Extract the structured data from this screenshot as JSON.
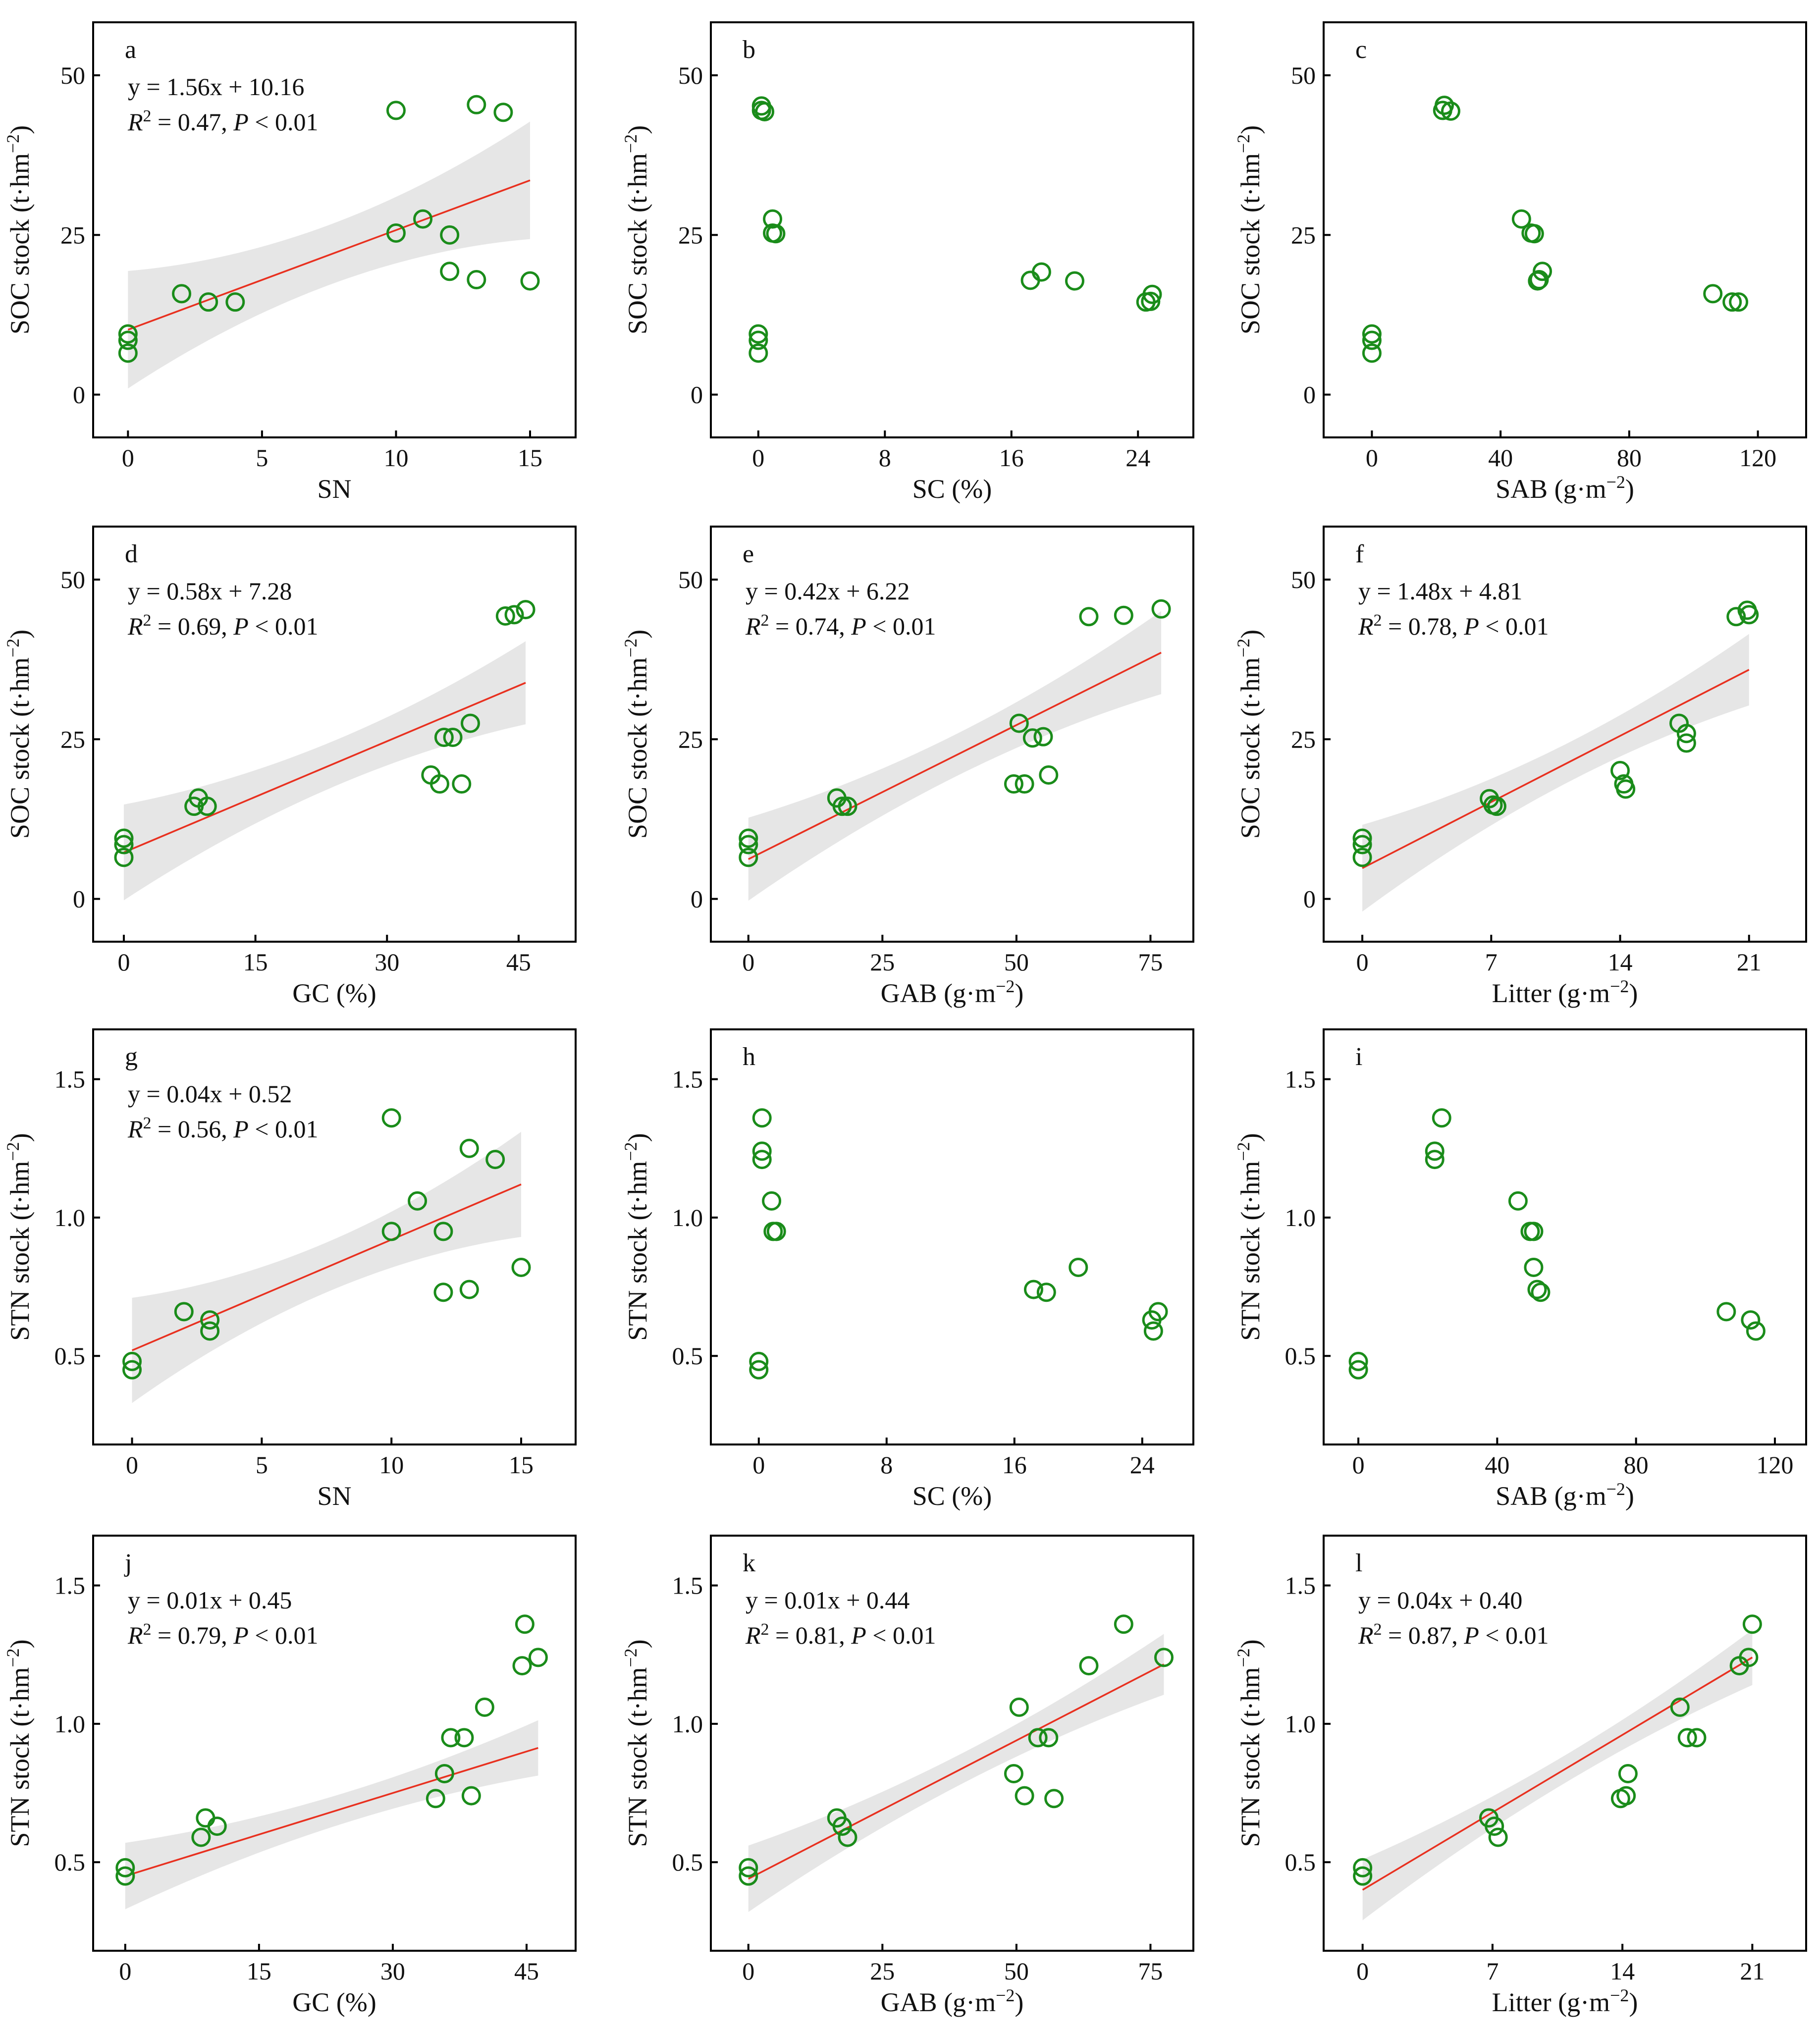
{
  "colors": {
    "point": "#1a8c1a",
    "fit_line": "#e8301f",
    "ci_band": "#e6e6e6"
  },
  "chart_data": [
    {
      "type": "scatter",
      "panel": "a",
      "xlabel": "SN",
      "ylabel": "SOC stock (t·hm⁻²)",
      "xlim": [
        -1.3,
        16.7
      ],
      "ylim": [
        -6.7,
        58.3
      ],
      "xticks": [
        0,
        5,
        10,
        15
      ],
      "yticks": [
        0,
        25,
        50
      ],
      "equation": "y = 1.56x + 10.16",
      "r2": "= 0.47, ",
      "pvalue": " < 0.01",
      "fit": {
        "slope": 1.56,
        "intercept": 10.16,
        "x_range": [
          0,
          15
        ],
        "ci_halfwidth": [
          9.2,
          4.7,
          9.2
        ]
      },
      "points": [
        [
          0,
          6.5
        ],
        [
          0,
          8.5
        ],
        [
          0,
          9.5
        ],
        [
          2,
          15.8
        ],
        [
          3,
          14.5
        ],
        [
          4,
          14.5
        ],
        [
          10,
          44.5
        ],
        [
          10,
          25.3
        ],
        [
          11,
          27.5
        ],
        [
          12,
          25
        ],
        [
          12,
          19.3
        ],
        [
          13,
          45.4
        ],
        [
          13,
          18
        ],
        [
          14,
          44.2
        ],
        [
          15,
          17.8
        ]
      ]
    },
    {
      "type": "scatter",
      "panel": "b",
      "xlabel": "SC (%)",
      "ylabel": "SOC stock (t·hm⁻²)",
      "xlim": [
        -3,
        27.5
      ],
      "ylim": [
        -6.7,
        58.3
      ],
      "xticks": [
        0,
        8,
        16,
        24
      ],
      "yticks": [
        0,
        25,
        50
      ],
      "points": [
        [
          0,
          6.5
        ],
        [
          0,
          8.5
        ],
        [
          0,
          9.5
        ],
        [
          0.2,
          44.5
        ],
        [
          0.2,
          45.2
        ],
        [
          0.4,
          44.3
        ],
        [
          0.9,
          27.5
        ],
        [
          0.9,
          25.3
        ],
        [
          1.1,
          25.2
        ],
        [
          17.2,
          17.9
        ],
        [
          17.9,
          19.2
        ],
        [
          20,
          17.8
        ],
        [
          24.5,
          14.5
        ],
        [
          24.8,
          14.6
        ],
        [
          24.9,
          15.7
        ]
      ]
    },
    {
      "type": "scatter",
      "panel": "c",
      "xlabel": "SAB (g·m⁻²)",
      "ylabel": "SOC stock (t·hm⁻²)",
      "xlim": [
        -15,
        135
      ],
      "ylim": [
        -6.7,
        58.3
      ],
      "xticks": [
        0,
        40,
        80,
        120
      ],
      "yticks": [
        0,
        25,
        50
      ],
      "points": [
        [
          0,
          6.5
        ],
        [
          0,
          8.5
        ],
        [
          0,
          9.5
        ],
        [
          22,
          44.5
        ],
        [
          22.5,
          45.3
        ],
        [
          24.5,
          44.4
        ],
        [
          46.5,
          27.5
        ],
        [
          49.5,
          25.3
        ],
        [
          50.5,
          25.2
        ],
        [
          51.5,
          17.8
        ],
        [
          52,
          18
        ],
        [
          53,
          19.3
        ],
        [
          106,
          15.8
        ],
        [
          112,
          14.5
        ],
        [
          114,
          14.5
        ]
      ]
    },
    {
      "type": "scatter",
      "panel": "d",
      "xlabel": "GC (%)",
      "ylabel": "SOC stock (t·hm⁻²)",
      "xlim": [
        -3.5,
        51.5
      ],
      "ylim": [
        -6.7,
        58.3
      ],
      "xticks": [
        0,
        15,
        30,
        45
      ],
      "yticks": [
        0,
        25,
        50
      ],
      "equation": "y = 0.58x + 7.28",
      "r2": "= 0.69, ",
      "pvalue": " < 0.01",
      "fit": {
        "slope": 0.58,
        "intercept": 7.28,
        "x_range": [
          0,
          45.8
        ],
        "ci_halfwidth": [
          7.5,
          3.6,
          6.5
        ]
      },
      "points": [
        [
          0,
          6.5
        ],
        [
          0,
          8.5
        ],
        [
          0,
          9.5
        ],
        [
          8,
          14.5
        ],
        [
          8.5,
          15.8
        ],
        [
          9.5,
          14.5
        ],
        [
          35,
          19.4
        ],
        [
          36,
          18
        ],
        [
          36.5,
          25.3
        ],
        [
          37.5,
          25.3
        ],
        [
          38.5,
          18
        ],
        [
          39.5,
          27.5
        ],
        [
          43.5,
          44.3
        ],
        [
          44.5,
          44.5
        ],
        [
          45.8,
          45.3
        ]
      ]
    },
    {
      "type": "scatter",
      "panel": "e",
      "xlabel": "GAB (g·m⁻²)",
      "ylabel": "SOC stock (t·hm⁻²)",
      "xlim": [
        -7,
        83
      ],
      "ylim": [
        -6.7,
        58.3
      ],
      "xticks": [
        0,
        25,
        50,
        75
      ],
      "yticks": [
        0,
        25,
        50
      ],
      "equation": "y = 0.42x + 6.22",
      "r2": "= 0.74, ",
      "pvalue": " < 0.01",
      "fit": {
        "slope": 0.42,
        "intercept": 6.22,
        "x_range": [
          0,
          77
        ],
        "ci_halfwidth": [
          6.5,
          3.3,
          6.5
        ]
      },
      "points": [
        [
          0,
          6.5
        ],
        [
          0,
          8.5
        ],
        [
          0,
          9.5
        ],
        [
          16.5,
          15.8
        ],
        [
          17.5,
          14.5
        ],
        [
          18.5,
          14.5
        ],
        [
          49.5,
          18
        ],
        [
          50.5,
          27.5
        ],
        [
          51.5,
          18
        ],
        [
          53,
          25.2
        ],
        [
          55,
          25.4
        ],
        [
          56,
          19.4
        ],
        [
          63.5,
          44.2
        ],
        [
          70,
          44.4
        ],
        [
          77,
          45.4
        ]
      ]
    },
    {
      "type": "scatter",
      "panel": "f",
      "xlabel": "Litter (g·m⁻²)",
      "ylabel": "SOC stock (t·hm⁻²)",
      "xlim": [
        -2.1,
        24.1
      ],
      "ylim": [
        -6.7,
        58.3
      ],
      "xticks": [
        0,
        7,
        14,
        21
      ],
      "yticks": [
        0,
        25,
        50
      ],
      "equation": "y = 1.48x + 4.81",
      "r2": "= 0.78, ",
      "pvalue": " < 0.01",
      "fit": {
        "slope": 1.48,
        "intercept": 4.81,
        "x_range": [
          0,
          21
        ],
        "ci_halfwidth": [
          6.8,
          3.1,
          5.6
        ]
      },
      "points": [
        [
          0,
          6.5
        ],
        [
          0,
          8.5
        ],
        [
          0,
          9.5
        ],
        [
          6.9,
          15.7
        ],
        [
          7.1,
          14.7
        ],
        [
          7.3,
          14.5
        ],
        [
          14,
          20.1
        ],
        [
          14.2,
          18
        ],
        [
          14.3,
          17.2
        ],
        [
          17.2,
          27.5
        ],
        [
          17.6,
          25.9
        ],
        [
          17.6,
          24.4
        ],
        [
          20.3,
          44.2
        ],
        [
          20.9,
          45.2
        ],
        [
          21,
          44.5
        ]
      ]
    },
    {
      "type": "scatter",
      "panel": "g",
      "xlabel": "SN",
      "ylabel": "STN stock (t·hm⁻²)",
      "xlim": [
        -1.5,
        17.1
      ],
      "ylim": [
        0.18,
        1.68
      ],
      "xticks": [
        0,
        5,
        10,
        15
      ],
      "yticks": [
        0.5,
        1.0,
        1.5
      ],
      "equation": "y = 0.04x + 0.52",
      "r2": "= 0.56, ",
      "pvalue": " < 0.01",
      "fit": {
        "slope": 0.04,
        "intercept": 0.52,
        "x_range": [
          0,
          15
        ],
        "ci_halfwidth": [
          0.19,
          0.09,
          0.19
        ]
      },
      "points": [
        [
          0,
          0.45
        ],
        [
          0,
          0.48
        ],
        [
          2,
          0.66
        ],
        [
          3,
          0.63
        ],
        [
          3,
          0.59
        ],
        [
          10,
          1.36
        ],
        [
          10,
          0.95
        ],
        [
          11,
          1.06
        ],
        [
          12,
          0.95
        ],
        [
          12,
          0.73
        ],
        [
          13,
          1.25
        ],
        [
          13,
          0.74
        ],
        [
          14,
          1.21
        ],
        [
          15,
          0.82
        ]
      ]
    },
    {
      "type": "scatter",
      "panel": "h",
      "xlabel": "SC (%)",
      "ylabel": "STN stock (t·hm⁻²)",
      "xlim": [
        -3,
        27.2
      ],
      "ylim": [
        0.18,
        1.68
      ],
      "xticks": [
        0,
        8,
        16,
        24
      ],
      "yticks": [
        0.5,
        1.0,
        1.5
      ],
      "points": [
        [
          0,
          0.45
        ],
        [
          0,
          0.48
        ],
        [
          0.2,
          1.36
        ],
        [
          0.2,
          1.21
        ],
        [
          0.2,
          1.24
        ],
        [
          0.8,
          1.06
        ],
        [
          0.9,
          0.95
        ],
        [
          1.1,
          0.95
        ],
        [
          17.2,
          0.74
        ],
        [
          18,
          0.73
        ],
        [
          20,
          0.82
        ],
        [
          24.6,
          0.63
        ],
        [
          24.7,
          0.59
        ],
        [
          25,
          0.66
        ]
      ]
    },
    {
      "type": "scatter",
      "panel": "i",
      "xlabel": "SAB (g·m⁻²)",
      "ylabel": "STN stock (t·hm⁻²)",
      "xlim": [
        -10,
        129
      ],
      "ylim": [
        0.18,
        1.68
      ],
      "xticks": [
        0,
        40,
        80,
        120
      ],
      "yticks": [
        0.5,
        1.0,
        1.5
      ],
      "points": [
        [
          0,
          0.45
        ],
        [
          0,
          0.48
        ],
        [
          22,
          1.21
        ],
        [
          22,
          1.24
        ],
        [
          24,
          1.36
        ],
        [
          46,
          1.06
        ],
        [
          49.5,
          0.95
        ],
        [
          50.5,
          0.95
        ],
        [
          50.5,
          0.82
        ],
        [
          51.5,
          0.74
        ],
        [
          52.5,
          0.73
        ],
        [
          106,
          0.66
        ],
        [
          113,
          0.63
        ],
        [
          114.5,
          0.59
        ]
      ]
    },
    {
      "type": "scatter",
      "panel": "j",
      "xlabel": "GC (%)",
      "ylabel": "STN stock (t·hm⁻²)",
      "xlim": [
        -3.6,
        50.5
      ],
      "ylim": [
        0.18,
        1.68
      ],
      "xticks": [
        0,
        15,
        30,
        45
      ],
      "yticks": [
        0.5,
        1.0,
        1.5
      ],
      "equation": "y = 0.01x + 0.45",
      "r2": "= 0.79, ",
      "pvalue": " < 0.01",
      "fit": {
        "slope": 0.01,
        "intercept": 0.45,
        "x_range": [
          0,
          46.3
        ],
        "ci_halfwidth": [
          0.12,
          0.055,
          0.1
        ]
      },
      "points": [
        [
          0,
          0.45
        ],
        [
          0,
          0.48
        ],
        [
          8.5,
          0.59
        ],
        [
          9,
          0.66
        ],
        [
          10.3,
          0.63
        ],
        [
          34.8,
          0.73
        ],
        [
          35.8,
          0.82
        ],
        [
          36.5,
          0.95
        ],
        [
          38,
          0.95
        ],
        [
          38.8,
          0.74
        ],
        [
          40.3,
          1.06
        ],
        [
          44.5,
          1.21
        ],
        [
          44.8,
          1.36
        ],
        [
          46.3,
          1.24
        ]
      ]
    },
    {
      "type": "scatter",
      "panel": "k",
      "xlabel": "GAB (g·m⁻²)",
      "ylabel": "STN stock (t·hm⁻²)",
      "xlim": [
        -7,
        83
      ],
      "ylim": [
        0.18,
        1.68
      ],
      "xticks": [
        0,
        25,
        50,
        75
      ],
      "yticks": [
        0.5,
        1.0,
        1.5
      ],
      "equation": "y = 0.01x + 0.44",
      "r2": "= 0.81, ",
      "pvalue": " < 0.01",
      "fit": {
        "slope": 0.01,
        "intercept": 0.44,
        "x_range": [
          0,
          77.5
        ],
        "ci_halfwidth": [
          0.12,
          0.055,
          0.11
        ]
      },
      "points": [
        [
          0,
          0.45
        ],
        [
          0,
          0.48
        ],
        [
          16.5,
          0.66
        ],
        [
          17.5,
          0.63
        ],
        [
          18.5,
          0.59
        ],
        [
          49.5,
          0.82
        ],
        [
          50.5,
          1.06
        ],
        [
          51.5,
          0.74
        ],
        [
          54,
          0.95
        ],
        [
          56,
          0.95
        ],
        [
          57,
          0.73
        ],
        [
          63.5,
          1.21
        ],
        [
          70,
          1.36
        ],
        [
          77.5,
          1.24
        ]
      ]
    },
    {
      "type": "scatter",
      "panel": "l",
      "xlabel": "Litter (g·m⁻²)",
      "ylabel": "STN stock (t·hm⁻²)",
      "xlim": [
        -2.1,
        23.9
      ],
      "ylim": [
        0.18,
        1.68
      ],
      "xticks": [
        0,
        7,
        14,
        21
      ],
      "yticks": [
        0.5,
        1.0,
        1.5
      ],
      "equation": "y = 0.04x + 0.40",
      "r2": "= 0.87, ",
      "pvalue": " < 0.01",
      "fit": {
        "slope": 0.04,
        "intercept": 0.4,
        "x_range": [
          0,
          21
        ],
        "ci_halfwidth": [
          0.11,
          0.05,
          0.1
        ]
      },
      "points": [
        [
          0,
          0.45
        ],
        [
          0,
          0.48
        ],
        [
          6.8,
          0.66
        ],
        [
          7.1,
          0.63
        ],
        [
          7.3,
          0.59
        ],
        [
          13.9,
          0.73
        ],
        [
          14.2,
          0.74
        ],
        [
          14.3,
          0.82
        ],
        [
          17.1,
          1.06
        ],
        [
          17.5,
          0.95
        ],
        [
          18,
          0.95
        ],
        [
          20.3,
          1.21
        ],
        [
          20.8,
          1.24
        ],
        [
          21,
          1.36
        ]
      ]
    }
  ]
}
